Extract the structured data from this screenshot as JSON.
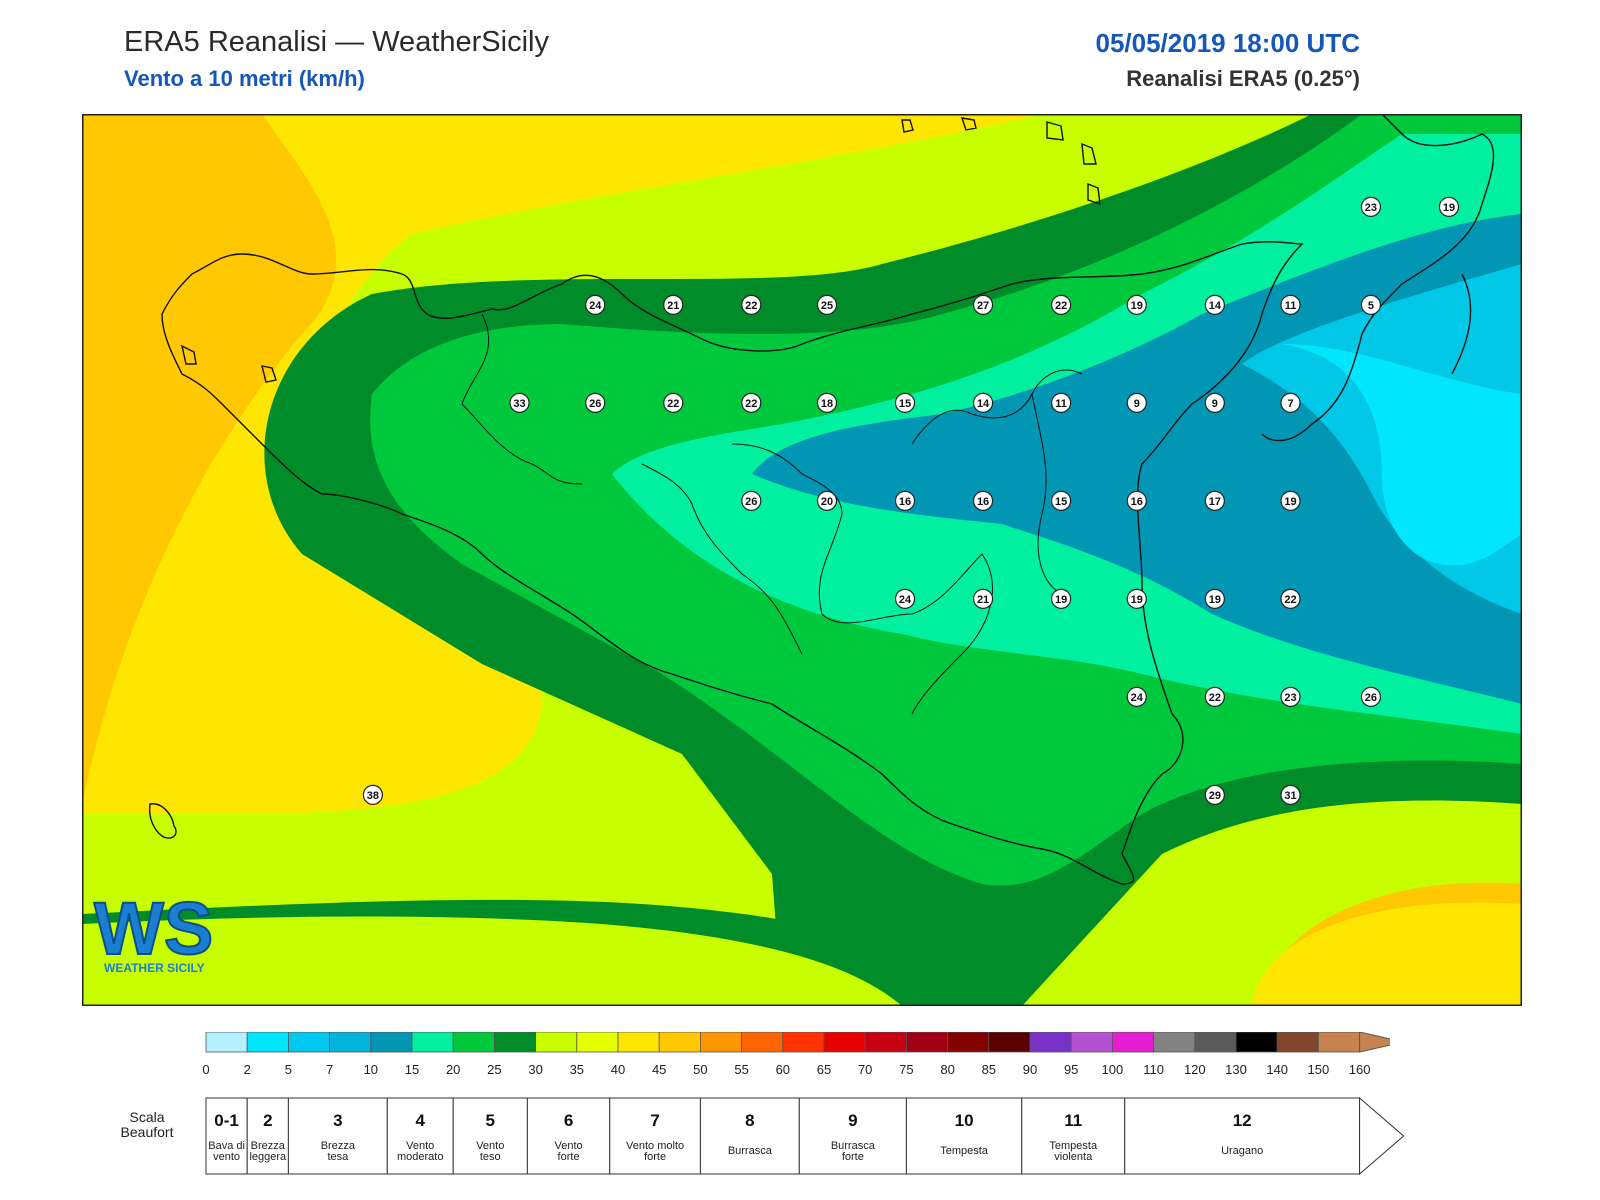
{
  "header": {
    "title": "ERA5 Reanalisi — WeatherSicily",
    "subtitle": "Vento a 10 metri (km/h)",
    "datetime": "05/05/2019 18:00 UTC",
    "source": "Reanalisi ERA5 (0.25°)"
  },
  "logo": {
    "text": "WS",
    "subtext": "WEATHER SICILY"
  },
  "colors": {
    "zone_bands": [
      "#ffc800",
      "#ffe600",
      "#c8ff00",
      "#00c83c",
      "#008c28",
      "#00f0a0",
      "#0096b4",
      "#00c8e6",
      "#00e6ff"
    ]
  },
  "stations": [
    {
      "v": "24",
      "lon": 12.77,
      "lat": 38.12
    },
    {
      "v": "21",
      "lon": 13.1,
      "lat": 38.12
    },
    {
      "v": "22",
      "lon": 13.43,
      "lat": 38.12
    },
    {
      "v": "25",
      "lon": 13.75,
      "lat": 38.12
    },
    {
      "v": "27",
      "lon": 14.41,
      "lat": 38.12
    },
    {
      "v": "22",
      "lon": 14.74,
      "lat": 38.12
    },
    {
      "v": "19",
      "lon": 15.06,
      "lat": 38.12
    },
    {
      "v": "14",
      "lon": 15.39,
      "lat": 38.12
    },
    {
      "v": "11",
      "lon": 15.71,
      "lat": 38.12
    },
    {
      "v": "5",
      "lon": 16.05,
      "lat": 38.12
    },
    {
      "v": "23",
      "lon": 16.05,
      "lat": 38.5
    },
    {
      "v": "19",
      "lon": 16.38,
      "lat": 38.5
    },
    {
      "v": "33",
      "lon": 12.45,
      "lat": 37.74
    },
    {
      "v": "26",
      "lon": 12.77,
      "lat": 37.74
    },
    {
      "v": "22",
      "lon": 13.1,
      "lat": 37.74
    },
    {
      "v": "22",
      "lon": 13.43,
      "lat": 37.74
    },
    {
      "v": "18",
      "lon": 13.75,
      "lat": 37.74
    },
    {
      "v": "15",
      "lon": 14.08,
      "lat": 37.74
    },
    {
      "v": "14",
      "lon": 14.41,
      "lat": 37.74
    },
    {
      "v": "11",
      "lon": 14.74,
      "lat": 37.74
    },
    {
      "v": "9",
      "lon": 15.06,
      "lat": 37.74
    },
    {
      "v": "9",
      "lon": 15.39,
      "lat": 37.74
    },
    {
      "v": "7",
      "lon": 15.71,
      "lat": 37.74
    },
    {
      "v": "26",
      "lon": 13.43,
      "lat": 37.36
    },
    {
      "v": "20",
      "lon": 13.75,
      "lat": 37.36
    },
    {
      "v": "16",
      "lon": 14.08,
      "lat": 37.36
    },
    {
      "v": "16",
      "lon": 14.41,
      "lat": 37.36
    },
    {
      "v": "15",
      "lon": 14.74,
      "lat": 37.36
    },
    {
      "v": "16",
      "lon": 15.06,
      "lat": 37.36
    },
    {
      "v": "17",
      "lon": 15.39,
      "lat": 37.36
    },
    {
      "v": "19",
      "lon": 15.71,
      "lat": 37.36
    },
    {
      "v": "24",
      "lon": 14.08,
      "lat": 36.98
    },
    {
      "v": "21",
      "lon": 14.41,
      "lat": 36.98
    },
    {
      "v": "19",
      "lon": 14.74,
      "lat": 36.98
    },
    {
      "v": "19",
      "lon": 15.06,
      "lat": 36.98
    },
    {
      "v": "19",
      "lon": 15.39,
      "lat": 36.98
    },
    {
      "v": "22",
      "lon": 15.71,
      "lat": 36.98
    },
    {
      "v": "24",
      "lon": 15.06,
      "lat": 36.6
    },
    {
      "v": "22",
      "lon": 15.39,
      "lat": 36.6
    },
    {
      "v": "23",
      "lon": 15.71,
      "lat": 36.6
    },
    {
      "v": "26",
      "lon": 16.05,
      "lat": 36.6
    },
    {
      "v": "29",
      "lon": 15.39,
      "lat": 36.22
    },
    {
      "v": "31",
      "lon": 15.71,
      "lat": 36.22
    },
    {
      "v": "38",
      "lon": 11.83,
      "lat": 36.22
    }
  ],
  "colorbar": {
    "ticks": [
      "0",
      "2",
      "5",
      "7",
      "10",
      "15",
      "20",
      "25",
      "30",
      "35",
      "40",
      "45",
      "50",
      "55",
      "60",
      "65",
      "70",
      "75",
      "80",
      "85",
      "90",
      "95",
      "100",
      "110",
      "120",
      "130",
      "140",
      "150",
      "160"
    ],
    "colors": [
      "#b4f0ff",
      "#00e6ff",
      "#00c8f0",
      "#00b4dc",
      "#0096b4",
      "#00f0a0",
      "#00c83c",
      "#008c28",
      "#c8ff00",
      "#e6ff00",
      "#ffe600",
      "#ffc800",
      "#ff9600",
      "#ff6400",
      "#ff3200",
      "#e60000",
      "#c80014",
      "#a00014",
      "#820000",
      "#5a0000",
      "#7832c8",
      "#b450d2",
      "#e61ed2",
      "#828282",
      "#5a5a5a",
      "#000000",
      "#82462d",
      "#c88250"
    ]
  },
  "beaufort": {
    "label": "Scala Beaufort",
    "scale": [
      {
        "force": "0-1",
        "desc": "Bava di vento"
      },
      {
        "force": "2",
        "desc": "Brezza leggera"
      },
      {
        "force": "3",
        "desc": "Brezza tesa"
      },
      {
        "force": "4",
        "desc": "Vento moderato"
      },
      {
        "force": "5",
        "desc": "Vento teso"
      },
      {
        "force": "6",
        "desc": "Vento forte"
      },
      {
        "force": "7",
        "desc": "Vento molto forte"
      },
      {
        "force": "8",
        "desc": "Burrasca"
      },
      {
        "force": "9",
        "desc": "Burrasca forte"
      },
      {
        "force": "10",
        "desc": "Tempesta"
      },
      {
        "force": "11",
        "desc": "Tempesta violenta"
      },
      {
        "force": "12",
        "desc": "Uragano"
      }
    ]
  }
}
